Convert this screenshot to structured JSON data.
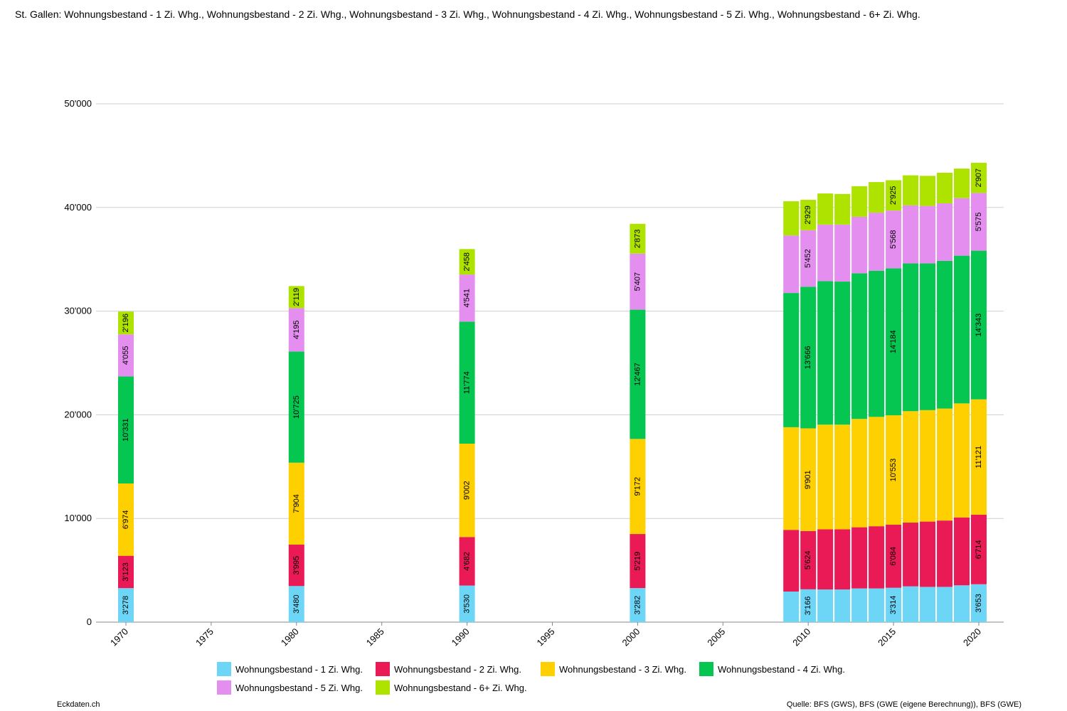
{
  "title": "St. Gallen: Wohnungsbestand - 1 Zi. Whg., Wohnungsbestand - 2 Zi. Whg., Wohnungsbestand - 3 Zi. Whg., Wohnungsbestand - 4 Zi. Whg., Wohnungsbestand - 5 Zi. Whg., Wohnungsbestand - 6+ Zi. Whg.",
  "footer": {
    "left": "Eckdaten.ch",
    "right": "Quelle: BFS (GWS), BFS (GWE (eigene Berechnung)), BFS (GWE)"
  },
  "colors": {
    "s1": "#6dd6f7",
    "s2": "#ea1a57",
    "s3": "#ffd000",
    "s4": "#06c652",
    "s5": "#e48ff0",
    "s6": "#aee300",
    "grid": "#cfcfcf"
  },
  "chart_data": {
    "type": "bar",
    "stacked": true,
    "x": [
      1970,
      1980,
      1990,
      2000,
      2009,
      2010,
      2011,
      2012,
      2013,
      2014,
      2015,
      2016,
      2017,
      2018,
      2019,
      2020
    ],
    "xlim": [
      1970,
      2020
    ],
    "xticks": [
      "1970",
      "1975",
      "1980",
      "1985",
      "1990",
      "1995",
      "2000",
      "2005",
      "2010",
      "2015",
      "2020"
    ],
    "ylim": [
      0,
      50000
    ],
    "yticks": [
      "0",
      "10'000",
      "20'000",
      "30'000",
      "40'000",
      "50'000"
    ],
    "grid": true,
    "legend_position": "bottom",
    "series": [
      {
        "name": "Wohnungsbestand - 1 Zi. Whg.",
        "color": "#6dd6f7",
        "values": [
          3278,
          3480,
          3530,
          3282,
          2950,
          3166,
          3150,
          3150,
          3250,
          3250,
          3314,
          3450,
          3400,
          3400,
          3550,
          3653
        ]
      },
      {
        "name": "Wohnungsbestand - 2 Zi. Whg.",
        "color": "#ea1a57",
        "values": [
          3123,
          3995,
          4682,
          5219,
          5950,
          5624,
          5800,
          5800,
          5900,
          6000,
          6084,
          6150,
          6300,
          6400,
          6550,
          6714
        ]
      },
      {
        "name": "Wohnungsbestand - 3 Zi. Whg.",
        "color": "#ffd000",
        "values": [
          6974,
          7904,
          9002,
          9172,
          9900,
          9901,
          10100,
          10100,
          10450,
          10550,
          10553,
          10750,
          10750,
          10800,
          11000,
          11121
        ]
      },
      {
        "name": "Wohnungsbestand - 4 Zi. Whg.",
        "color": "#06c652",
        "values": [
          10331,
          10725,
          11774,
          12467,
          12950,
          13666,
          13850,
          13800,
          14050,
          14100,
          14184,
          14250,
          14150,
          14250,
          14250,
          14343
        ]
      },
      {
        "name": "Wohnungsbestand - 5 Zi. Whg.",
        "color": "#e48ff0",
        "values": [
          4055,
          4195,
          4541,
          5407,
          5550,
          5452,
          5450,
          5500,
          5450,
          5600,
          5568,
          5600,
          5550,
          5550,
          5550,
          5575
        ]
      },
      {
        "name": "Wohnungsbestand - 6+ Zi. Whg.",
        "color": "#aee300",
        "values": [
          2196,
          2119,
          2458,
          2873,
          3300,
          2929,
          3000,
          2950,
          2950,
          2950,
          2925,
          2900,
          2900,
          2950,
          2850,
          2907
        ]
      }
    ],
    "data_labels": {
      "1970": [
        "3'278",
        "3'123",
        "6'974",
        "10'331",
        "4'055",
        "2'196"
      ],
      "1980": [
        "3'480",
        "3'995",
        "7'904",
        "10'725",
        "4'195",
        "2'119"
      ],
      "1990": [
        "3'530",
        "4'682",
        "9'002",
        "11'774",
        "4'541",
        "2'458"
      ],
      "2000": [
        "3'282",
        "5'219",
        "9'172",
        "12'467",
        "5'407",
        "2'873"
      ],
      "2010": [
        "3'166",
        "5'624",
        "9'901",
        "13'666",
        "5'452",
        "2'929"
      ],
      "2015": [
        "3'314",
        "6'084",
        "10'553",
        "14'184",
        "5'568",
        "2'925"
      ],
      "2020": [
        "3'653",
        "6'714",
        "11'121",
        "14'343",
        "5'575",
        "2'907"
      ]
    }
  }
}
